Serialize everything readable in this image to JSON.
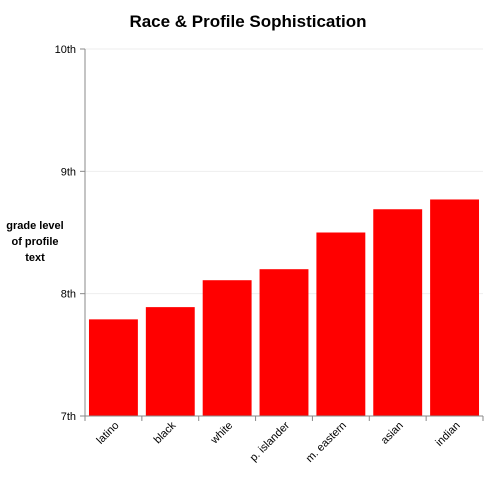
{
  "chart_data": {
    "type": "bar",
    "title": "Race & Profile Sophistication",
    "ylabel": [
      "grade level",
      "of profile",
      "text"
    ],
    "xlabel": "",
    "categories": [
      "latino",
      "black",
      "white",
      "p. islander",
      "m. eastern",
      "asian",
      "indian"
    ],
    "values": [
      7.79,
      7.89,
      8.11,
      8.2,
      8.5,
      8.69,
      8.77
    ],
    "ylim": [
      7,
      10
    ],
    "yticks": [
      {
        "value": 7,
        "label": "7th"
      },
      {
        "value": 8,
        "label": "8th"
      },
      {
        "value": 9,
        "label": "9th"
      },
      {
        "value": 10,
        "label": "10th"
      }
    ],
    "grid": true,
    "bar_color": "#ff0000",
    "grid_color": "#eeeeee",
    "axis_color": "#888888"
  }
}
